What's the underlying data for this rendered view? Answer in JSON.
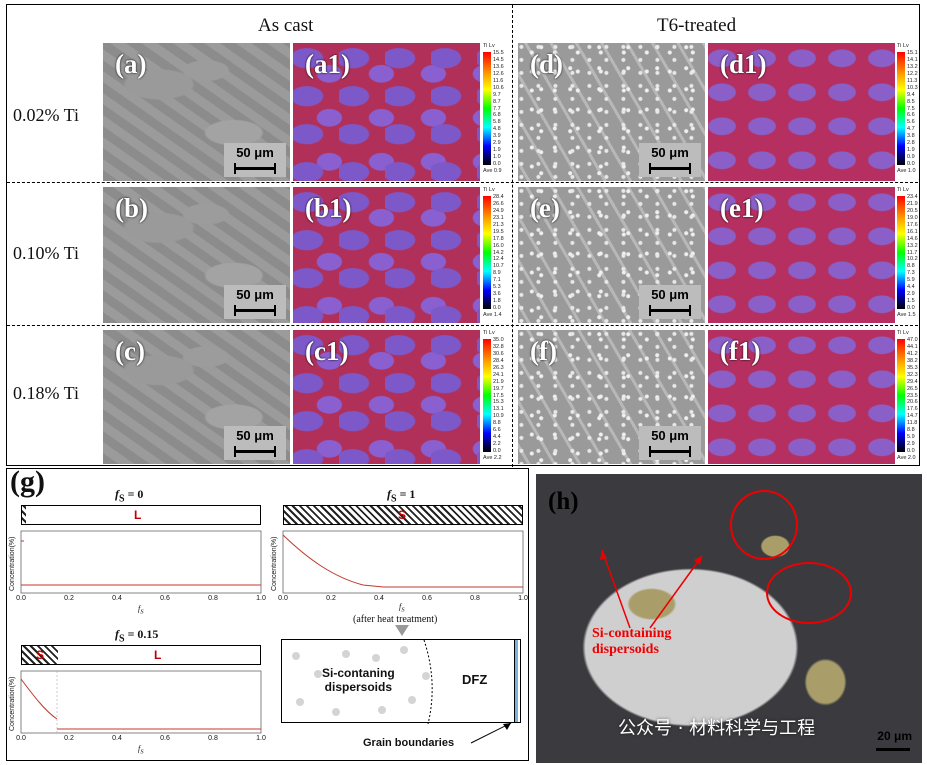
{
  "top": {
    "col_titles": [
      "As cast",
      "T6-treated"
    ],
    "row_labels": [
      "0.02% Ti",
      "0.10% Ti",
      "0.18% Ti"
    ],
    "scale_label": "50 μm",
    "colorbar_title": "Ti Lv",
    "panels": {
      "a": "(a)",
      "a1": "(a1)",
      "d": "(d)",
      "d1": "(d1)",
      "b": "(b)",
      "b1": "(b1)",
      "e": "(e)",
      "e1": "(e1)",
      "c": "(c)",
      "c1": "(c1)",
      "f": "(f)",
      "f1": "(f1)"
    },
    "colorbars": {
      "a1": {
        "ticks": [
          "15.5",
          "14.5",
          "13.6",
          "12.6",
          "11.6",
          "10.6",
          "9.7",
          "8.7",
          "7.7",
          "6.8",
          "5.8",
          "4.8",
          "3.9",
          "2.9",
          "1.9",
          "1.0",
          "0.0"
        ],
        "ave": "Ave 0.9"
      },
      "d1": {
        "ticks": [
          "15.1",
          "14.1",
          "13.2",
          "12.2",
          "11.3",
          "10.3",
          "9.4",
          "8.5",
          "7.5",
          "6.6",
          "5.6",
          "4.7",
          "3.8",
          "2.8",
          "1.9",
          "0.9",
          "0.0"
        ],
        "ave": "Ave 1.0"
      },
      "b1": {
        "ticks": [
          "28.4",
          "26.6",
          "24.9",
          "23.1",
          "21.3",
          "19.5",
          "17.8",
          "16.0",
          "14.2",
          "12.4",
          "10.7",
          "8.9",
          "7.1",
          "5.3",
          "3.6",
          "1.8",
          "0.0"
        ],
        "ave": "Ave 1.4"
      },
      "e1": {
        "ticks": [
          "23.4",
          "21.9",
          "20.5",
          "19.0",
          "17.6",
          "16.1",
          "14.6",
          "13.2",
          "11.7",
          "10.2",
          "8.8",
          "7.3",
          "5.9",
          "4.4",
          "2.9",
          "1.5",
          "0.0"
        ],
        "ave": "Ave 1.5"
      },
      "c1": {
        "ticks": [
          "35.0",
          "32.8",
          "30.6",
          "28.4",
          "26.3",
          "24.1",
          "21.9",
          "19.7",
          "17.5",
          "15.3",
          "13.1",
          "10.9",
          "8.8",
          "6.6",
          "4.4",
          "2.2",
          "0.0"
        ],
        "ave": "Ave 2.2"
      },
      "f1": {
        "ticks": [
          "47.0",
          "44.1",
          "41.2",
          "38.2",
          "35.3",
          "32.3",
          "29.4",
          "26.5",
          "23.5",
          "20.6",
          "17.6",
          "14.7",
          "11.8",
          "8.8",
          "5.9",
          "2.9",
          "0.0"
        ],
        "ave": "Ave 2.0"
      }
    }
  },
  "g": {
    "label": "(g)",
    "fs0": {
      "title_fs": "f",
      "title_sub": "S",
      "title_eq": " = 0",
      "bar_letter": "L"
    },
    "fs1": {
      "title_fs": "f",
      "title_sub": "S",
      "title_eq": " = 1",
      "bar_letter": "S"
    },
    "fs015": {
      "title_fs": "f",
      "title_sub": "S",
      "title_eq": " = 0.15",
      "bar_letter_s": "S",
      "bar_letter_l": "L"
    },
    "ylabel": "Concentration(%)",
    "xlabel": "f",
    "xlabel_sub": "S",
    "xticks": [
      "0.0",
      "0.2",
      "0.4",
      "0.6",
      "0.8",
      "1.0"
    ],
    "after_heat_fs": "f",
    "after_heat_sub": "S",
    "after_heat": "(after heat treatment)",
    "dispersoids_label_1": "Si-contaning",
    "dispersoids_label_2": "dispersoids",
    "dfz": "DFZ",
    "grain_boundaries": "Grain boundaries"
  },
  "h": {
    "label": "(h)",
    "annotation_1": "Si-containing",
    "annotation_2": "dispersoids",
    "scale_label": "20 μm",
    "watermark": "公众号 · 材料科学与工程"
  },
  "colors": {
    "red_text": "#c00000",
    "curve": "#c0392b",
    "annotation": "#e00000"
  }
}
